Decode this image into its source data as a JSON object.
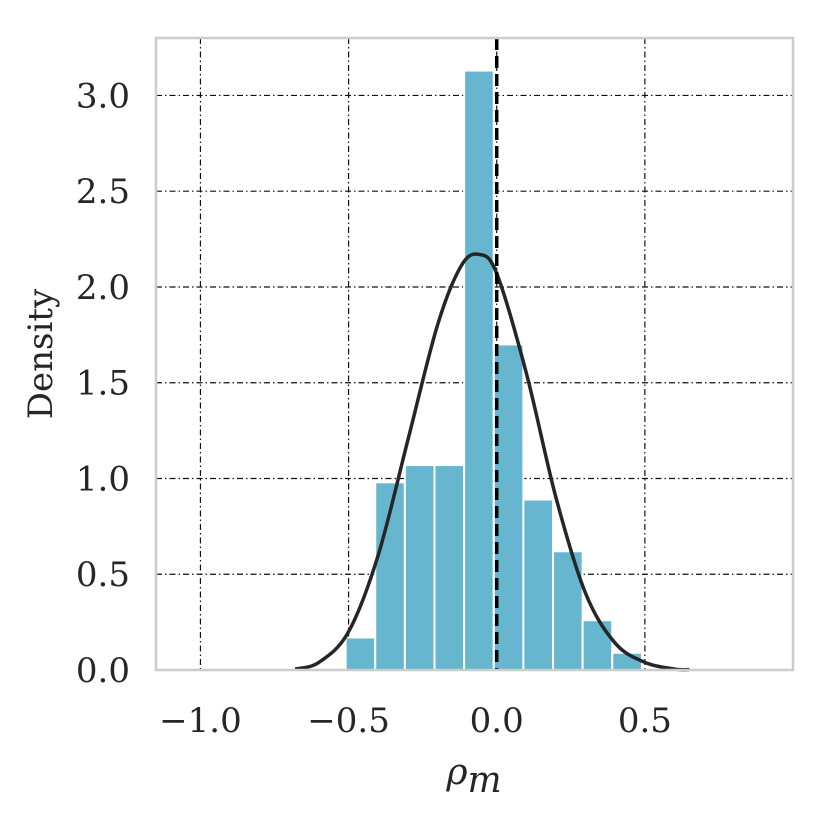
{
  "chart_data": {
    "type": "bar",
    "xlabel_base": "ρ",
    "xlabel_sub": "m",
    "ylabel": "Density",
    "xlim": [
      -1.15,
      1.0
    ],
    "ylim": [
      0,
      3.3
    ],
    "xticks": [
      -1.0,
      -0.5,
      0.0,
      0.5
    ],
    "xtick_labels": [
      "−1.0",
      "−0.5",
      "0.0",
      "0.5"
    ],
    "yticks": [
      0.0,
      0.5,
      1.0,
      1.5,
      2.0,
      2.5,
      3.0
    ],
    "ytick_labels": [
      "0.0",
      "0.5",
      "1.0",
      "1.5",
      "2.0",
      "2.5",
      "3.0"
    ],
    "grid": true,
    "histogram": {
      "bin_edges": [
        -0.51,
        -0.41,
        -0.31,
        -0.21,
        -0.11,
        -0.01,
        0.09,
        0.19,
        0.29,
        0.39,
        0.49
      ],
      "densities": [
        0.17,
        0.98,
        1.07,
        1.07,
        3.13,
        1.7,
        0.89,
        0.62,
        0.26,
        0.09
      ]
    },
    "kde": {
      "x": [
        -0.68,
        -0.6,
        -0.5,
        -0.4,
        -0.3,
        -0.2,
        -0.12,
        -0.06,
        0.0,
        0.1,
        0.2,
        0.3,
        0.4,
        0.5,
        0.6,
        0.65
      ],
      "y": [
        0.005,
        0.04,
        0.2,
        0.6,
        1.2,
        1.8,
        2.11,
        2.17,
        2.07,
        1.55,
        0.9,
        0.4,
        0.14,
        0.04,
        0.005,
        0.002
      ]
    },
    "reference_line_x": 0.0,
    "colors": {
      "bar": "#67b6d0",
      "kde": "#262626",
      "reference": "#000000",
      "frame": "#cccccc"
    }
  }
}
